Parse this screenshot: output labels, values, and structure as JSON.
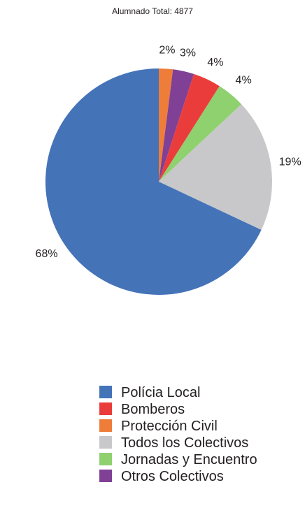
{
  "chart_data": {
    "type": "pie",
    "title": "Alumnado Total: 4877",
    "slices": [
      {
        "label": "Protección Civil",
        "value": 2,
        "percent_label": "2%",
        "color": "#ef7d3a"
      },
      {
        "label": "Otros Colectivos",
        "value": 3,
        "percent_label": "3%",
        "color": "#7f4096"
      },
      {
        "label": "Bomberos",
        "value": 4,
        "percent_label": "4%",
        "color": "#ea3d3b"
      },
      {
        "label": "Jornadas y Encuentro",
        "value": 4,
        "percent_label": "4%",
        "color": "#8fd06f"
      },
      {
        "label": "Todos los Colectivos",
        "value": 19,
        "percent_label": "19%",
        "color": "#c8c8ca"
      },
      {
        "label": "Polícia Local",
        "value": 68,
        "percent_label": "68%",
        "color": "#4573b8"
      }
    ],
    "legend": [
      {
        "label": "Polícia Local",
        "color": "#4573b8"
      },
      {
        "label": "Bomberos",
        "color": "#ea3d3b"
      },
      {
        "label": "Protección Civil",
        "color": "#ef7d3a"
      },
      {
        "label": "Todos los Colectivos",
        "color": "#c8c8ca"
      },
      {
        "label": "Jornadas y Encuentro",
        "color": "#8fd06f"
      },
      {
        "label": "Otros Colectivos",
        "color": "#7f4096"
      }
    ],
    "legend_position": "bottom-center"
  }
}
